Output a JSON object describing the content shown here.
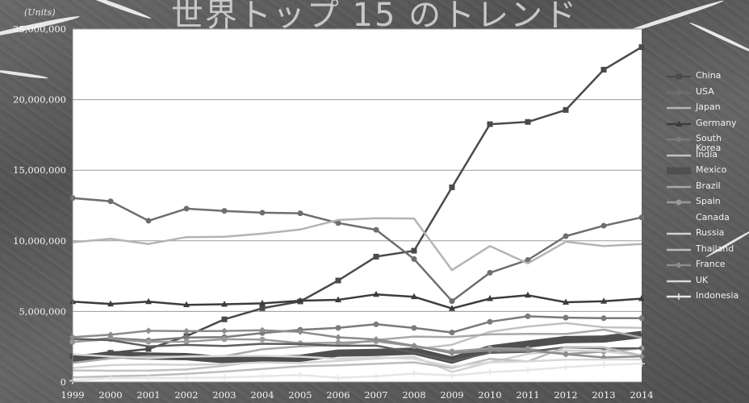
{
  "title": "世界トップ 15 のトレンド",
  "chart_data": {
    "type": "line",
    "units_label": "(Units)",
    "categories": [
      "1999",
      "2000",
      "2001",
      "2002",
      "2003",
      "2004",
      "2005",
      "2006",
      "2007",
      "2008",
      "2009",
      "2010",
      "2011",
      "2012",
      "2013",
      "2014"
    ],
    "ylim": [
      0,
      25000000
    ],
    "yticks": [
      "0",
      "5,000,000",
      "10,000,000",
      "15,000,000",
      "20,000,000",
      "25,000,000"
    ],
    "grid": true,
    "legend_position": "right",
    "series": [
      {
        "name": "China",
        "color": "#4a4a4a",
        "marker": "square",
        "values": [
          1830000,
          2070000,
          2340000,
          3250000,
          4440000,
          5230000,
          5710000,
          7190000,
          8880000,
          9300000,
          13790000,
          18260000,
          18420000,
          19270000,
          22120000,
          23720000
        ]
      },
      {
        "name": "USA",
        "color": "#6e6e6e",
        "marker": "circle",
        "values": [
          13030000,
          12800000,
          11420000,
          12280000,
          12120000,
          11990000,
          11950000,
          11260000,
          10780000,
          8710000,
          5730000,
          7740000,
          8650000,
          10330000,
          11070000,
          11660000
        ]
      },
      {
        "name": "Japan",
        "color": "#b4b4b4",
        "marker": "none",
        "values": [
          9900000,
          10140000,
          9780000,
          10260000,
          10290000,
          10510000,
          10800000,
          11480000,
          11600000,
          11580000,
          7930000,
          9630000,
          8400000,
          9940000,
          9630000,
          9770000
        ]
      },
      {
        "name": "Germany",
        "color": "#3c3c3c",
        "marker": "triangle",
        "values": [
          5690000,
          5530000,
          5690000,
          5470000,
          5510000,
          5570000,
          5760000,
          5820000,
          6210000,
          6040000,
          5210000,
          5910000,
          6150000,
          5650000,
          5720000,
          5910000
        ]
      },
      {
        "name": "South Korea",
        "color": "#7a7a7a",
        "marker": "circle",
        "values": [
          2840000,
          3110000,
          2950000,
          3150000,
          3180000,
          3470000,
          3700000,
          3840000,
          4090000,
          3830000,
          3510000,
          4270000,
          4660000,
          4560000,
          4520000,
          4520000
        ]
      },
      {
        "name": "India",
        "color": "#c2c2c2",
        "marker": "none",
        "values": [
          820000,
          800000,
          810000,
          890000,
          1160000,
          1510000,
          1640000,
          2020000,
          2250000,
          2330000,
          2640000,
          3560000,
          3930000,
          4170000,
          3880000,
          3840000
        ]
      },
      {
        "name": "Mexico",
        "color": "#4f4f4f",
        "marker": "band",
        "values": [
          1550000,
          1940000,
          1840000,
          1800000,
          1580000,
          1580000,
          1680000,
          2050000,
          2100000,
          2190000,
          1560000,
          2350000,
          2680000,
          3000000,
          3050000,
          3370000
        ]
      },
      {
        "name": "Brazil",
        "color": "#a8a8a8",
        "marker": "none",
        "values": [
          1350000,
          1680000,
          1820000,
          1790000,
          1830000,
          2320000,
          2530000,
          2610000,
          2980000,
          3220000,
          3180000,
          3380000,
          3410000,
          3400000,
          3710000,
          3150000
        ]
      },
      {
        "name": "Spain",
        "color": "#9a9a9a",
        "marker": "circle",
        "values": [
          2850000,
          3030000,
          2850000,
          2860000,
          3030000,
          3010000,
          2750000,
          2780000,
          2890000,
          2540000,
          2170000,
          2390000,
          2350000,
          1980000,
          2160000,
          2400000
        ]
      },
      {
        "name": "Canada",
        "color": "#5e5e5e",
        "marker": "none",
        "values": [
          3060000,
          2960000,
          2530000,
          2630000,
          2550000,
          2710000,
          2690000,
          2570000,
          2580000,
          2080000,
          1490000,
          2070000,
          2140000,
          2460000,
          2380000,
          2390000
        ]
      },
      {
        "name": "Russia",
        "color": "#d2d2d2",
        "marker": "none",
        "values": [
          1000000,
          1200000,
          1250000,
          1220000,
          1280000,
          1390000,
          1350000,
          1500000,
          1660000,
          1790000,
          720000,
          1400000,
          1990000,
          2230000,
          2180000,
          1880000
        ]
      },
      {
        "name": "Thailand",
        "color": "#bdbdbd",
        "marker": "none",
        "values": [
          330000,
          410000,
          460000,
          580000,
          740000,
          930000,
          1120000,
          1190000,
          1290000,
          1390000,
          1000000,
          1640000,
          1460000,
          2480000,
          2460000,
          1880000
        ]
      },
      {
        "name": "France",
        "color": "#8c8c8c",
        "marker": "diamond",
        "values": [
          3180000,
          3350000,
          3630000,
          3600000,
          3620000,
          3670000,
          3550000,
          3170000,
          3020000,
          2570000,
          2050000,
          2230000,
          2240000,
          1970000,
          1740000,
          1820000
        ]
      },
      {
        "name": "UK",
        "color": "#d8d8d8",
        "marker": "none",
        "values": [
          1970000,
          1810000,
          1690000,
          1820000,
          1850000,
          1860000,
          1800000,
          1650000,
          1750000,
          1650000,
          1090000,
          1390000,
          1460000,
          1580000,
          1600000,
          1600000
        ]
      },
      {
        "name": "Indonesia",
        "color": "#e6e6e6",
        "marker": "cross",
        "values": [
          90000,
          290000,
          280000,
          300000,
          320000,
          410000,
          500000,
          300000,
          410000,
          600000,
          460000,
          700000,
          840000,
          1050000,
          1210000,
          1300000
        ]
      }
    ]
  }
}
